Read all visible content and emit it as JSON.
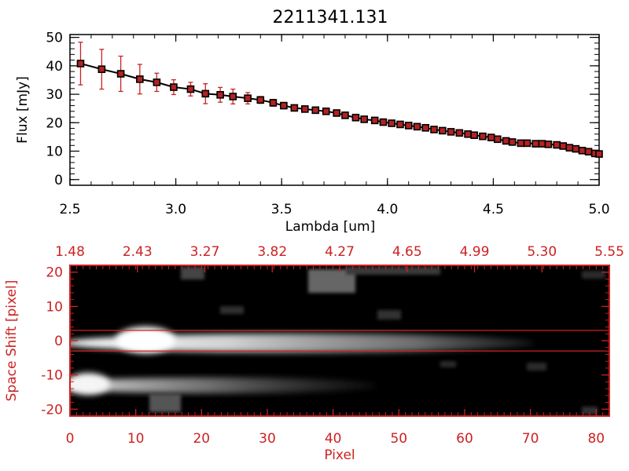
{
  "title": "2211341.131",
  "colors": {
    "axis": "#000000",
    "accent": "#cc2222",
    "marker": "#b22222",
    "background": "#ffffff"
  },
  "chart_data": [
    {
      "type": "line",
      "xlabel": "Lambda [um]",
      "ylabel": "Flux [mJy]",
      "xlim": [
        2.5,
        5.0
      ],
      "ylim": [
        -2,
        51
      ],
      "xticks": [
        "2.5",
        "3.0",
        "3.5",
        "4.0",
        "4.5",
        "5.0"
      ],
      "yticks": [
        "0",
        "10",
        "20",
        "30",
        "40",
        "50"
      ],
      "series": [
        {
          "x": [
            2.55,
            2.65,
            2.74,
            2.83,
            2.91,
            2.99,
            3.07,
            3.14,
            3.21,
            3.27,
            3.34,
            3.4,
            3.46,
            3.51,
            3.56,
            3.61,
            3.66,
            3.71,
            3.76,
            3.8,
            3.85,
            3.89,
            3.94,
            3.98,
            4.02,
            4.06,
            4.1,
            4.14,
            4.18,
            4.22,
            4.26,
            4.3,
            4.34,
            4.38,
            4.41,
            4.45,
            4.49,
            4.52,
            4.56,
            4.59,
            4.63,
            4.66,
            4.7,
            4.73,
            4.76,
            4.8,
            4.83,
            4.86,
            4.89,
            4.92,
            4.95,
            4.98,
            5.0
          ],
          "y": [
            40.8,
            38.8,
            37.2,
            35.3,
            34.2,
            32.5,
            31.8,
            30.2,
            29.8,
            29.2,
            28.6,
            28.0,
            27.0,
            26.0,
            25.2,
            24.8,
            24.4,
            24.0,
            23.4,
            22.6,
            21.8,
            21.2,
            20.8,
            20.2,
            19.8,
            19.4,
            19.0,
            18.6,
            18.2,
            17.6,
            17.2,
            16.8,
            16.4,
            16.0,
            15.6,
            15.2,
            14.8,
            14.2,
            13.6,
            13.2,
            12.8,
            12.8,
            12.6,
            12.6,
            12.4,
            12.2,
            11.8,
            11.2,
            10.8,
            10.2,
            9.8,
            9.2,
            9.0
          ],
          "err": [
            7.5,
            7.0,
            6.2,
            5.2,
            3.2,
            2.6,
            2.4,
            3.5,
            2.6,
            2.6,
            2.0,
            1.2,
            1.2,
            0.8,
            0.8,
            0.8,
            0.8,
            0.8,
            0.6,
            0.6,
            0.6,
            0.6,
            0.6,
            0.6,
            0.6,
            0.6,
            0.6,
            0.6,
            0.6,
            0.6,
            0.6,
            0.6,
            0.6,
            0.6,
            0.6,
            0.6,
            0.6,
            0.6,
            0.6,
            0.6,
            0.6,
            0.6,
            0.6,
            0.6,
            0.6,
            0.6,
            0.6,
            0.6,
            0.6,
            0.6,
            0.6,
            0.6,
            0.6
          ]
        }
      ]
    },
    {
      "type": "heatmap",
      "xlabel": "Pixel",
      "ylabel": "Space Shift [pixel]",
      "xlim": [
        0,
        82
      ],
      "ylim": [
        -22,
        22
      ],
      "xticks": [
        "0",
        "10",
        "20",
        "30",
        "40",
        "50",
        "60",
        "70",
        "80"
      ],
      "yticks": [
        "20",
        "10",
        "0",
        "-10",
        "-20"
      ],
      "top_ticks": [
        "1.48",
        "2.43",
        "3.27",
        "3.82",
        "4.27",
        "4.65",
        "4.99",
        "5.30",
        "5.55"
      ],
      "aperture_lines": [
        3,
        -3
      ]
    }
  ]
}
